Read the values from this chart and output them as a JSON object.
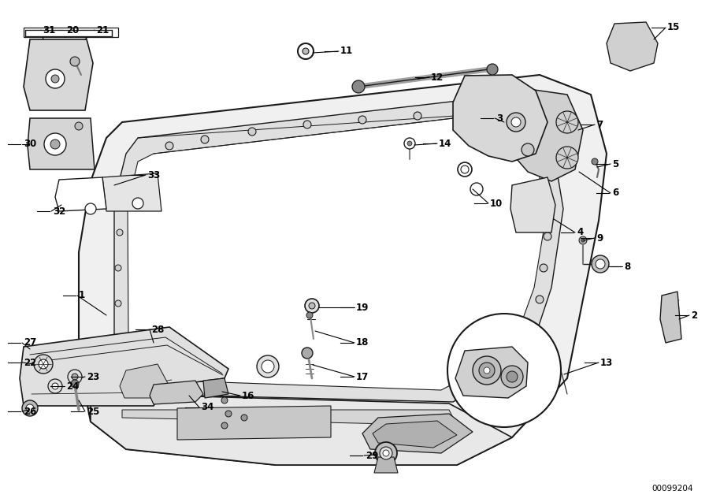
{
  "bg_color": "#ffffff",
  "line_color": "#1a1a1a",
  "diagram_id": "00099204",
  "figsize": [
    9.0,
    6.37
  ],
  "dpi": 100
}
